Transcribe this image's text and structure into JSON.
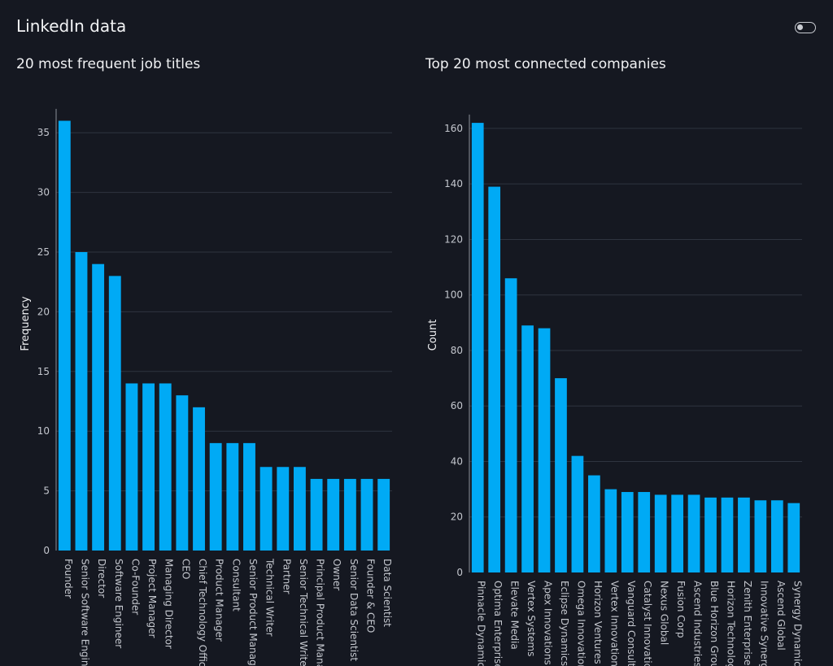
{
  "app": {
    "title": "LinkedIn data"
  },
  "colors": {
    "background": "#151821",
    "bar": "#00aaf5",
    "grid": "#2f3440"
  },
  "chart_data": [
    {
      "type": "bar",
      "title": "20 most frequent job titles",
      "xlabel": "",
      "ylabel": "Frequency",
      "ylim": [
        0,
        37
      ],
      "yticks": [
        0,
        5,
        10,
        15,
        20,
        25,
        30,
        35
      ],
      "grid": true,
      "categories": [
        "Founder",
        "Senior Software Engineer",
        "Director",
        "Software Engineer",
        "Co-Founder",
        "Project Manager",
        "Managing Director",
        "CEO",
        "Chief Technology Officer",
        "Product Manager",
        "Consultant",
        "Senior Product Manager",
        "Technical Writer",
        "Partner",
        "Senior Technical Writer",
        "Principal Product Manager",
        "Owner",
        "Senior Data Scientist",
        "Founder & CEO",
        "Data Scientist"
      ],
      "values": [
        36,
        25,
        24,
        23,
        14,
        14,
        14,
        13,
        12,
        9,
        9,
        9,
        7,
        7,
        7,
        6,
        6,
        6,
        6,
        6
      ]
    },
    {
      "type": "bar",
      "title": "Top 20 most connected companies",
      "xlabel": "",
      "ylabel": "Count",
      "ylim": [
        0,
        165
      ],
      "yticks": [
        0,
        20,
        40,
        60,
        80,
        100,
        120,
        140,
        160
      ],
      "grid": true,
      "categories": [
        "Pinnacle Dynamics",
        "Optima Enterprises",
        "Elevate Media",
        "Vertex Systems",
        "Apex Innovations",
        "Eclipse Dynamics",
        "Omega Innovations",
        "Horizon Ventures",
        "Vertex Innovations",
        "Vanguard Consulting",
        "Catalyst Innovations",
        "Nexus Global",
        "Fusion Corp",
        "Ascend Industries",
        "Blue Horizon Group",
        "Horizon Technologies",
        "Zenith Enterprises",
        "Innovative Synergy",
        "Ascend Global",
        "Synergy Dynamics"
      ],
      "values": [
        162,
        139,
        106,
        89,
        88,
        70,
        42,
        35,
        30,
        29,
        29,
        28,
        28,
        28,
        27,
        27,
        27,
        26,
        26,
        25
      ]
    }
  ]
}
